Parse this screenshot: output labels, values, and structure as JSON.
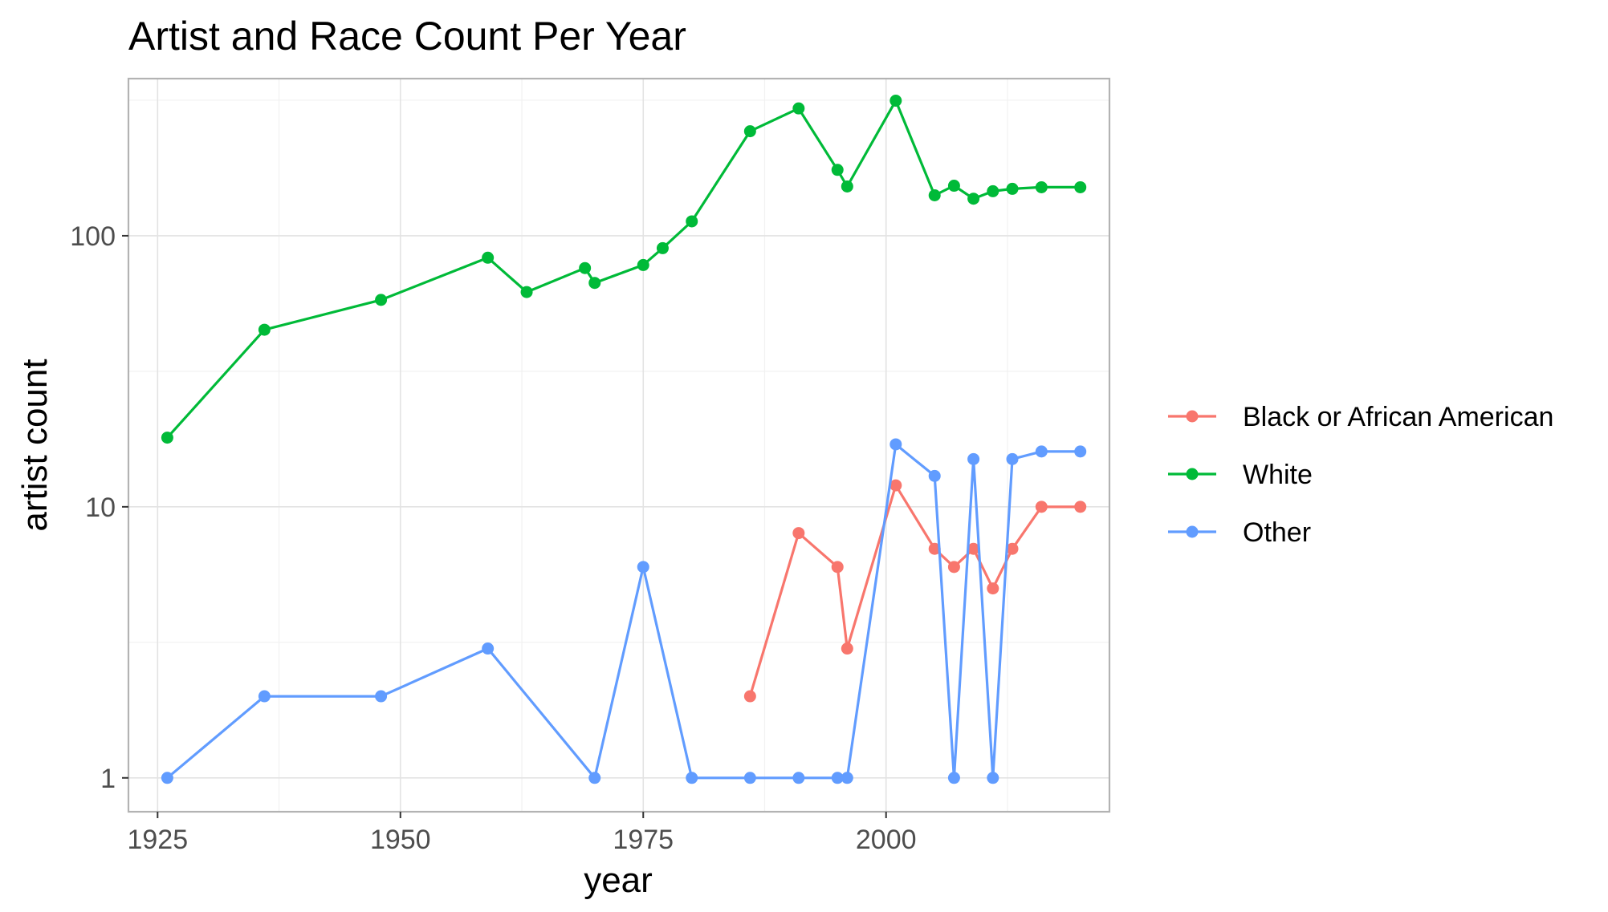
{
  "chart_data": {
    "type": "line",
    "title": "Artist and Race Count Per Year",
    "xlabel": "year",
    "ylabel": "artist count",
    "xlim": [
      1922,
      2023
    ],
    "ylim": [
      0.75,
      380
    ],
    "y_scale": "log10",
    "x_ticks": [
      1925,
      1950,
      1975,
      2000
    ],
    "y_ticks": [
      1,
      10,
      100
    ],
    "y_tick_labels": [
      "1",
      "10",
      "100"
    ],
    "grid": true,
    "legend_position": "right",
    "series": [
      {
        "name": "Black or African American",
        "color": "#F8766D",
        "x": [
          1986,
          1991,
          1995,
          1996,
          2001,
          2005,
          2007,
          2009,
          2011,
          2013,
          2016,
          2020
        ],
        "y": [
          2,
          8,
          6,
          3,
          12,
          7,
          6,
          7,
          5,
          7,
          10,
          10
        ]
      },
      {
        "name": "White",
        "color": "#00BA38",
        "x": [
          1926,
          1936,
          1948,
          1959,
          1963,
          1969,
          1970,
          1975,
          1977,
          1980,
          1986,
          1991,
          1995,
          1996,
          2001,
          2005,
          2007,
          2009,
          2011,
          2013,
          2016,
          2020
        ],
        "y": [
          18,
          45,
          58,
          83,
          62,
          76,
          67,
          78,
          90,
          113,
          243,
          295,
          175,
          152,
          315,
          141,
          153,
          137,
          146,
          149,
          151,
          151
        ]
      },
      {
        "name": "Other",
        "color": "#619CFF",
        "x": [
          1926,
          1936,
          1948,
          1959,
          1970,
          1975,
          1980,
          1986,
          1991,
          1995,
          1996,
          2001,
          2005,
          2007,
          2009,
          2011,
          2013,
          2016,
          2020
        ],
        "y": [
          1,
          2,
          2,
          3,
          1,
          6,
          1,
          1,
          1,
          1,
          1,
          17,
          13,
          1,
          15,
          1,
          15,
          16,
          16
        ]
      }
    ]
  }
}
